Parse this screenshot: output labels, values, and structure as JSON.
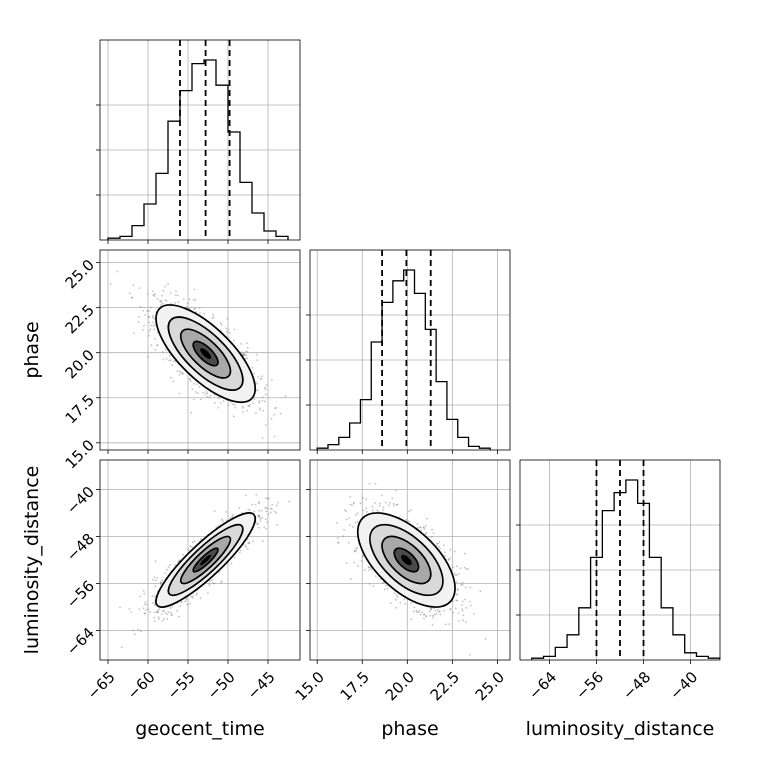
{
  "chart_data": {
    "type": "corner",
    "parameters": [
      "geocent_time",
      "phase",
      "luminosity_distance"
    ],
    "axis_labels": {
      "x": [
        "geocent_time",
        "phase",
        "luminosity_distance"
      ],
      "y": [
        "phase",
        "luminosity_distance"
      ]
    },
    "ticks": {
      "geocent_time": [
        -65,
        -60,
        -55,
        -50,
        -45
      ],
      "phase": [
        15.0,
        17.5,
        20.0,
        22.5,
        25.0
      ],
      "luminosity_distance": [
        -64,
        -56,
        -48,
        -40
      ]
    },
    "tick_labels": {
      "geocent_time": [
        "−65",
        "−60",
        "−55",
        "−50",
        "−45"
      ],
      "phase": [
        "15.0",
        "17.5",
        "20.0",
        "22.5",
        "25.0"
      ],
      "luminosity_distance": [
        "−64",
        "−56",
        "−48",
        "−40"
      ]
    },
    "ranges": {
      "geocent_time": [
        -66.0,
        -41.0
      ],
      "phase": [
        14.6,
        25.7
      ],
      "luminosity_distance": [
        -69.0,
        -35.0
      ]
    },
    "grid": true,
    "quantile_lines": {
      "geocent_time": [
        -56.0,
        -52.8,
        -49.8
      ],
      "phase": [
        18.6,
        19.95,
        21.3
      ],
      "luminosity_distance": [
        -56.0,
        -52.0,
        -48.0
      ]
    },
    "histograms": {
      "geocent_time": {
        "bin_edges": [
          -65,
          -63.5,
          -62,
          -60.5,
          -59,
          -57.5,
          -56,
          -54.5,
          -53,
          -51.5,
          -50,
          -48.5,
          -47,
          -45.5,
          -44,
          -42.5
        ],
        "counts": [
          0.01,
          0.02,
          0.08,
          0.2,
          0.37,
          0.66,
          0.83,
          0.98,
          1.0,
          0.86,
          0.6,
          0.32,
          0.15,
          0.05,
          0.02
        ]
      },
      "phase": {
        "bin_edges": [
          15.0,
          15.6,
          16.2,
          16.8,
          17.4,
          18.0,
          18.6,
          19.2,
          19.8,
          20.4,
          21.0,
          21.6,
          22.2,
          22.8,
          23.4,
          24.0,
          24.6
        ],
        "counts": [
          0.01,
          0.03,
          0.07,
          0.15,
          0.28,
          0.6,
          0.82,
          0.94,
          1.0,
          0.87,
          0.67,
          0.38,
          0.17,
          0.07,
          0.02,
          0.01
        ]
      },
      "luminosity_distance": {
        "bin_edges": [
          -67,
          -65,
          -63,
          -61,
          -59,
          -57,
          -55,
          -53,
          -51,
          -49,
          -47,
          -45,
          -43,
          -41,
          -39,
          -37,
          -35
        ],
        "counts": [
          0.01,
          0.02,
          0.07,
          0.14,
          0.29,
          0.57,
          0.83,
          0.93,
          1.0,
          0.87,
          0.57,
          0.29,
          0.14,
          0.04,
          0.02,
          0.01
        ]
      }
    },
    "correlations": {
      "phase_vs_geocent_time": -0.72,
      "luminosity_distance_vs_geocent_time": 0.88,
      "luminosity_distance_vs_phase": -0.6
    },
    "contour_levels": [
      "0.118",
      "0.393",
      "0.675",
      "0.864"
    ]
  }
}
